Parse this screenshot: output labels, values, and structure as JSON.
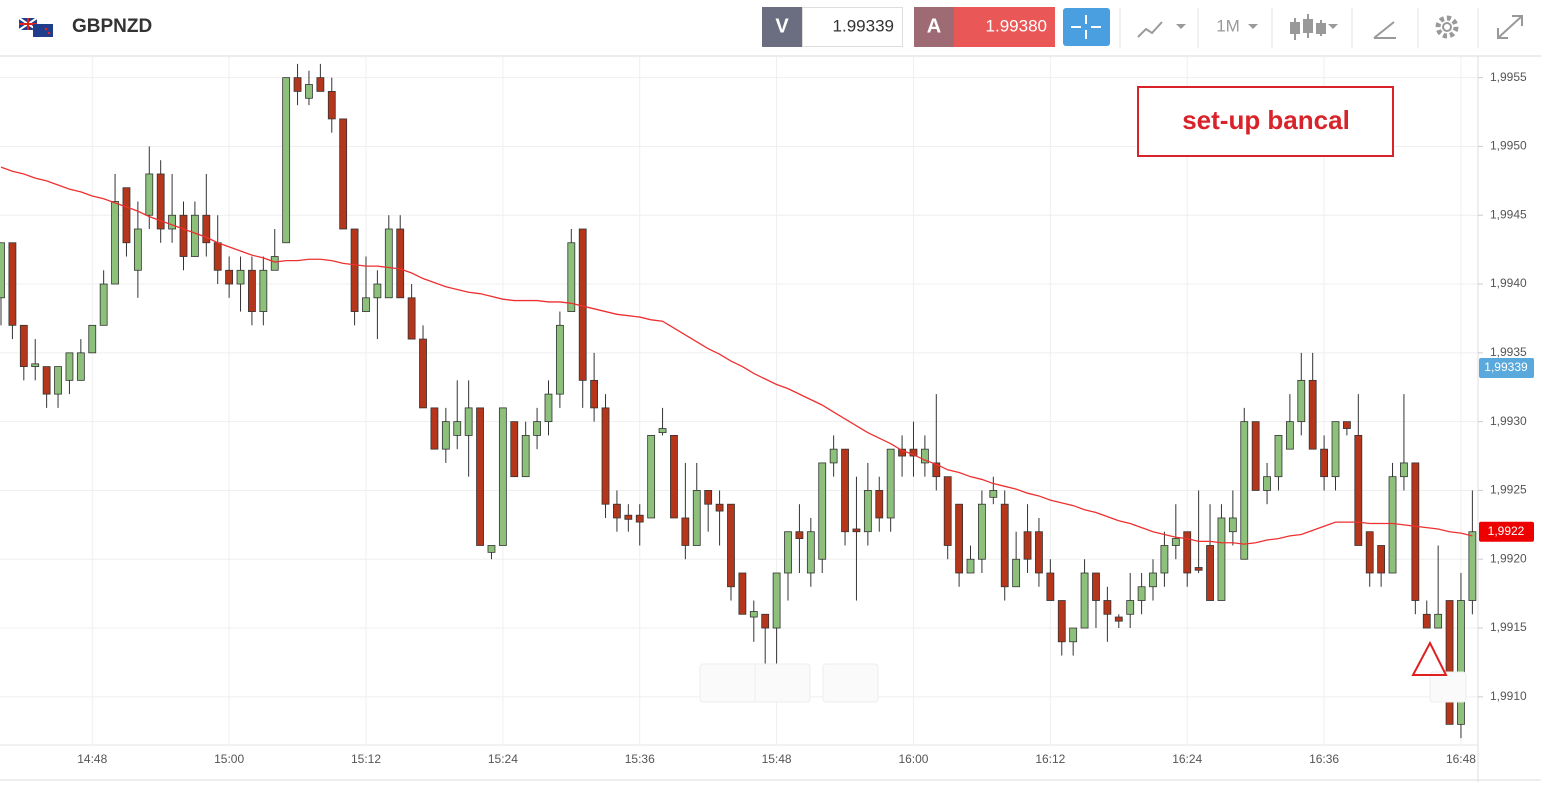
{
  "header": {
    "symbol": "GBPNZD",
    "bid_label": "V",
    "bid": "1.99339",
    "ask_label": "A",
    "ask": "1.99380",
    "timeframe": "1M"
  },
  "chart_data": {
    "type": "candlestick",
    "categories": [
      null,
      null,
      null,
      null,
      null,
      null,
      null,
      null,
      "14:48",
      null,
      null,
      null,
      null,
      null,
      null,
      null,
      null,
      null,
      null,
      null,
      "15:00",
      null,
      null,
      null,
      null,
      null,
      null,
      null,
      null,
      null,
      null,
      null,
      "15:12",
      null,
      null,
      null,
      null,
      null,
      null,
      null,
      null,
      null,
      null,
      null,
      "15:24",
      null,
      null,
      null,
      null,
      null,
      null,
      null,
      null,
      null,
      null,
      null,
      "15:36",
      null,
      null,
      null,
      null,
      null,
      null,
      null,
      null,
      null,
      null,
      null,
      "15:48",
      null,
      null,
      null,
      null,
      null,
      null,
      null,
      null,
      null,
      null,
      null,
      "16:00",
      null,
      null,
      null,
      null,
      null,
      null,
      null,
      null,
      null,
      null,
      null,
      "16:12",
      null,
      null,
      null,
      null,
      null,
      null,
      null,
      null,
      null,
      null,
      null,
      "16:24",
      null,
      null,
      null,
      null,
      null,
      null,
      null,
      null,
      null,
      null,
      null,
      "16:36",
      null,
      null,
      null,
      null,
      null,
      null,
      null,
      null,
      null,
      null,
      null,
      "16:48",
      null
    ],
    "open": [
      1.9939,
      1.9943,
      1.9937,
      1.9934,
      1.9934,
      1.9932,
      1.9933,
      1.9933,
      1.9935,
      1.9937,
      1.994,
      1.9947,
      1.9941,
      1.9945,
      1.9948,
      1.9944,
      1.9945,
      1.9942,
      1.9945,
      1.9943,
      1.9941,
      1.994,
      1.9941,
      1.9938,
      1.9941,
      1.9943,
      1.9955,
      1.99535,
      1.9955,
      1.9954,
      1.9952,
      1.9944,
      1.9938,
      1.9939,
      1.9939,
      1.9944,
      1.9939,
      1.9936,
      1.9931,
      1.9928,
      1.9929,
      1.9929,
      1.9931,
      1.99205,
      1.9921,
      1.993,
      1.9926,
      1.9929,
      1.993,
      1.9932,
      1.9938,
      1.9944,
      1.9933,
      1.9931,
      1.9924,
      1.99232,
      1.99232,
      1.9923,
      1.99292,
      1.9929,
      1.9923,
      1.9921,
      1.9925,
      1.9924,
      1.9924,
      1.9919,
      1.99158,
      1.9916,
      1.9915,
      1.9919,
      1.9922,
      1.9919,
      1.992,
      1.9927,
      1.9928,
      1.99222,
      1.9922,
      1.9925,
      1.9923,
      1.9928,
      1.9928,
      1.9927,
      1.9927,
      1.9926,
      1.9924,
      1.9919,
      1.992,
      1.99245,
      1.9924,
      1.9918,
      1.9922,
      1.9922,
      1.9919,
      1.9917,
      1.9914,
      1.9915,
      1.9919,
      1.9917,
      1.99158,
      1.9916,
      1.9917,
      1.9918,
      1.9919,
      1.9921,
      1.9922,
      1.99194,
      1.9921,
      1.9917,
      1.9922,
      1.992,
      1.993,
      1.9925,
      1.9926,
      1.9928,
      1.993,
      1.9933,
      1.9928,
      1.9926,
      1.993,
      1.9929,
      1.9922,
      1.9921,
      1.9919,
      1.9926,
      1.9927,
      1.9916,
      1.9915,
      1.9917,
      1.9908,
      1.9917
    ],
    "high": [
      1.9943,
      1.9943,
      1.9937,
      1.9936,
      1.9934,
      1.9934,
      1.9935,
      1.9936,
      1.9937,
      1.9941,
      1.9948,
      1.9947,
      1.9946,
      1.995,
      1.9949,
      1.9948,
      1.9946,
      1.9946,
      1.9948,
      1.9945,
      1.9942,
      1.9942,
      1.9942,
      1.9942,
      1.9944,
      1.9955,
      1.9956,
      1.99555,
      1.9956,
      1.9955,
      1.9952,
      1.9944,
      1.9942,
      1.9941,
      1.9945,
      1.9945,
      1.994,
      1.9937,
      1.9931,
      1.9931,
      1.9933,
      1.9933,
      1.9931,
      1.9921,
      1.9931,
      1.993,
      1.993,
      1.9931,
      1.9933,
      1.9938,
      1.9944,
      1.9944,
      1.9935,
      1.9932,
      1.9925,
      1.9924,
      1.9924,
      1.9929,
      1.9931,
      1.9929,
      1.9927,
      1.9927,
      1.9925,
      1.9925,
      1.9924,
      1.9919,
      1.9917,
      1.9916,
      1.9919,
      1.9922,
      1.9924,
      1.9923,
      1.9927,
      1.9929,
      1.9928,
      1.9926,
      1.9927,
      1.9926,
      1.9928,
      1.9929,
      1.993,
      1.9929,
      1.9932,
      1.9926,
      1.9924,
      1.9921,
      1.9925,
      1.9926,
      1.9925,
      1.9922,
      1.9924,
      1.9923,
      1.992,
      1.9917,
      1.9915,
      1.992,
      1.9919,
      1.9918,
      1.9916,
      1.9919,
      1.9919,
      1.992,
      1.9922,
      1.9924,
      1.9922,
      1.9925,
      1.9924,
      1.9924,
      1.9925,
      1.9931,
      1.993,
      1.9927,
      1.9929,
      1.9932,
      1.9935,
      1.9935,
      1.9929,
      1.993,
      1.993,
      1.9932,
      1.9922,
      1.9921,
      1.9927,
      1.9932,
      1.9927,
      1.9917,
      1.9921,
      1.9917,
      1.9919,
      1.9925
    ],
    "low": [
      1.9937,
      1.9936,
      1.9933,
      1.9933,
      1.9931,
      1.9931,
      1.9932,
      1.9933,
      1.9935,
      1.9937,
      1.994,
      1.9942,
      1.9939,
      1.9944,
      1.9943,
      1.9943,
      1.9941,
      1.9942,
      1.9942,
      1.994,
      1.9939,
      1.9938,
      1.9937,
      1.9937,
      1.9941,
      1.9943,
      1.9953,
      1.9953,
      1.9954,
      1.9951,
      1.9944,
      1.9937,
      1.9938,
      1.9936,
      1.9939,
      1.9939,
      1.9936,
      1.9931,
      1.9928,
      1.9927,
      1.9928,
      1.9926,
      1.9921,
      1.992,
      1.9921,
      1.9926,
      1.9926,
      1.9928,
      1.9929,
      1.9931,
      1.9938,
      1.9931,
      1.993,
      1.9923,
      1.9922,
      1.9922,
      1.9921,
      1.9923,
      1.9929,
      1.9923,
      1.992,
      1.9921,
      1.9922,
      1.9921,
      1.9917,
      1.9916,
      1.9914,
      1.9911,
      1.9912,
      1.9917,
      1.9919,
      1.9918,
      1.9919,
      1.9926,
      1.9921,
      1.9917,
      1.9921,
      1.9922,
      1.9922,
      1.9926,
      1.9926,
      1.9926,
      1.9925,
      1.992,
      1.9918,
      1.9919,
      1.9919,
      1.9924,
      1.9917,
      1.9918,
      1.9919,
      1.9918,
      1.9917,
      1.9913,
      1.9913,
      1.9915,
      1.9915,
      1.9914,
      1.9915,
      1.9915,
      1.9916,
      1.9917,
      1.9918,
      1.992,
      1.9918,
      1.9919,
      1.9917,
      1.9917,
      1.9921,
      1.992,
      1.9925,
      1.9924,
      1.9925,
      1.9928,
      1.9929,
      1.9928,
      1.9925,
      1.9925,
      1.9929,
      1.9921,
      1.9918,
      1.9918,
      1.9919,
      1.9925,
      1.9916,
      1.9915,
      1.9915,
      1.9908,
      1.9907,
      1.9916
    ],
    "close": [
      1.9943,
      1.9937,
      1.9934,
      1.99342,
      1.9932,
      1.9934,
      1.9935,
      1.9935,
      1.9937,
      1.994,
      1.9946,
      1.9943,
      1.9944,
      1.9948,
      1.9944,
      1.9945,
      1.9942,
      1.9945,
      1.9943,
      1.9941,
      1.994,
      1.9941,
      1.9938,
      1.9941,
      1.9942,
      1.9955,
      1.9954,
      1.99545,
      1.9954,
      1.9952,
      1.9944,
      1.9938,
      1.9939,
      1.994,
      1.9944,
      1.9939,
      1.9936,
      1.9931,
      1.9928,
      1.993,
      1.993,
      1.9931,
      1.9921,
      1.9921,
      1.9931,
      1.9926,
      1.9929,
      1.993,
      1.9932,
      1.9937,
      1.9943,
      1.9933,
      1.9931,
      1.9924,
      1.9923,
      1.99229,
      1.99227,
      1.9929,
      1.99295,
      1.9923,
      1.9921,
      1.9925,
      1.9924,
      1.99235,
      1.9918,
      1.9916,
      1.99162,
      1.9915,
      1.9919,
      1.9922,
      1.99215,
      1.9922,
      1.9927,
      1.9928,
      1.9922,
      1.9922,
      1.9925,
      1.9923,
      1.9928,
      1.99275,
      1.99275,
      1.9928,
      1.9926,
      1.9921,
      1.9919,
      1.992,
      1.9924,
      1.9925,
      1.9918,
      1.992,
      1.992,
      1.9919,
      1.9917,
      1.9914,
      1.9915,
      1.9919,
      1.9917,
      1.9916,
      1.99155,
      1.9917,
      1.9918,
      1.9919,
      1.9921,
      1.99215,
      1.9919,
      1.99192,
      1.9917,
      1.9923,
      1.9923,
      1.993,
      1.9925,
      1.9926,
      1.9929,
      1.993,
      1.9933,
      1.9928,
      1.9926,
      1.993,
      1.99295,
      1.9921,
      1.9919,
      1.9919,
      1.9926,
      1.9927,
      1.9917,
      1.9915,
      1.9916,
      1.9908,
      1.9917,
      1.9922
    ],
    "up_color": "#8dc07a",
    "down_color": "#b5361b",
    "ma": {
      "color": "#ee3030",
      "values": [
        1.99485,
        1.99482,
        1.9948,
        1.99477,
        1.99475,
        1.99472,
        1.99469,
        1.99467,
        1.99464,
        1.99462,
        1.99459,
        1.99456,
        1.99453,
        1.99449,
        1.99446,
        1.99443,
        1.9944,
        1.99437,
        1.99434,
        1.9943,
        1.99427,
        1.99424,
        1.99421,
        1.99419,
        1.99416,
        1.99417,
        1.99417,
        1.99418,
        1.99418,
        1.99417,
        1.99415,
        1.99414,
        1.99413,
        1.99413,
        1.99412,
        1.99411,
        1.99408,
        1.99404,
        1.99401,
        1.99398,
        1.99396,
        1.99394,
        1.99393,
        1.99391,
        1.99389,
        1.99388,
        1.99388,
        1.99388,
        1.99387,
        1.99387,
        1.99386,
        1.99384,
        1.99382,
        1.9938,
        1.99378,
        1.99377,
        1.99376,
        1.99374,
        1.99373,
        1.99368,
        1.99363,
        1.99358,
        1.99353,
        1.99349,
        1.99344,
        1.9934,
        1.99335,
        1.99331,
        1.99327,
        1.99324,
        1.9932,
        1.99316,
        1.99312,
        1.99307,
        1.99302,
        1.99297,
        1.99292,
        1.99288,
        1.99284,
        1.99279,
        1.99276,
        1.99272,
        1.99269,
        1.99265,
        1.99263,
        1.9926,
        1.99258,
        1.99255,
        1.99253,
        1.99251,
        1.99248,
        1.99246,
        1.99243,
        1.99241,
        1.99239,
        1.99236,
        1.99234,
        1.99231,
        1.99228,
        1.99226,
        1.99223,
        1.9922,
        1.99218,
        1.99216,
        1.99215,
        1.99213,
        1.99213,
        1.99212,
        1.99212,
        1.99211,
        1.99212,
        1.99214,
        1.99215,
        1.99217,
        1.99218,
        1.99221,
        1.99224,
        1.99227,
        1.99227,
        1.99227,
        1.99226,
        1.99226,
        1.99226,
        1.99225,
        1.99224,
        1.99223,
        1.99222,
        1.9922,
        1.99219,
        1.99217
      ]
    },
    "ylim": [
      1.99065,
      1.99565
    ],
    "yticks": [
      {
        "value": 1.991,
        "label": "1,9910"
      },
      {
        "value": 1.9915,
        "label": "1,9915"
      },
      {
        "value": 1.992,
        "label": "1,9920"
      },
      {
        "value": 1.9925,
        "label": "1,9925"
      },
      {
        "value": 1.993,
        "label": "1,9930"
      },
      {
        "value": 1.9935,
        "label": "1,9935"
      },
      {
        "value": 1.994,
        "label": "1,9940"
      },
      {
        "value": 1.9945,
        "label": "1,9945"
      },
      {
        "value": 1.995,
        "label": "1,9950"
      },
      {
        "value": 1.9955,
        "label": "1,9955"
      }
    ],
    "grid": true,
    "price_markers": [
      {
        "value": 1.99339,
        "label": "1,99339",
        "color": "#5aa9dd"
      },
      {
        "value": 1.9922,
        "label": "1,9922",
        "color": "#ee0000"
      }
    ],
    "annotation": "set-up bancal"
  }
}
